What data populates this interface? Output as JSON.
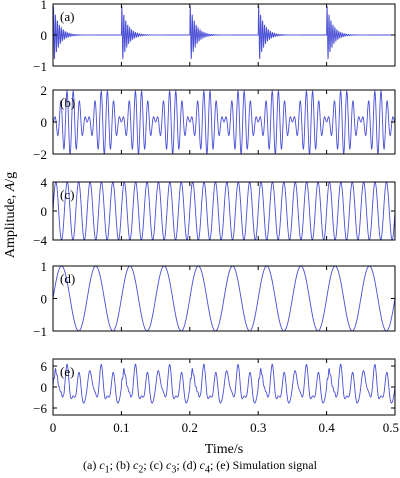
{
  "figure": {
    "ylabel_prefix": "Amplitude, ",
    "ylabel_symbol": "A",
    "ylabel_unit": "/g",
    "xlabel": "Time/s",
    "x_ticks": [
      "0",
      "0.1",
      "0.2",
      "0.3",
      "0.4",
      "0.5"
    ],
    "line_color": "#4a4fd6"
  },
  "caption": {
    "a": "(a) ",
    "c1": "c",
    "c1_sub": "1",
    "sep1": "; (b) ",
    "c2": "c",
    "c2_sub": "2",
    "sep2": "; (c) ",
    "c3": "c",
    "c3_sub": "3",
    "sep3": "; (d) ",
    "c4": "c",
    "c4_sub": "4",
    "tail": "; (e) Simulation signal"
  },
  "chart_data": [
    {
      "type": "line",
      "panel": "(a)",
      "component": "c1",
      "description_of_shape": "periodic impulse responses (decaying oscillations)",
      "xlim": [
        0,
        0.5
      ],
      "ylim": [
        -1,
        1
      ],
      "y_ticks": [
        "1",
        "0",
        "-1"
      ],
      "impulse_times": [
        0,
        0.1,
        0.2,
        0.3,
        0.4
      ],
      "amplitude": 1,
      "carrier_hz": 350,
      "decay_rate": 120
    },
    {
      "type": "line",
      "panel": "(b)",
      "component": "c2",
      "description_of_shape": "amplitude-modulated signal",
      "xlim": [
        0,
        0.5
      ],
      "ylim": [
        -2,
        2
      ],
      "y_ticks": [
        "2",
        "0",
        "-2"
      ],
      "carrier_hz": 110,
      "modulation_hz": 10,
      "amplitude": 2
    },
    {
      "type": "line",
      "panel": "(c)",
      "component": "c3",
      "description_of_shape": "sinusoid",
      "xlim": [
        0,
        0.5
      ],
      "ylim": [
        -4,
        4
      ],
      "y_ticks": [
        "4",
        "0",
        "-4"
      ],
      "frequency_hz": 60,
      "amplitude": 4
    },
    {
      "type": "line",
      "panel": "(d)",
      "component": "c4",
      "description_of_shape": "sinusoid",
      "xlim": [
        0,
        0.5
      ],
      "ylim": [
        -1,
        1
      ],
      "y_ticks": [
        "1",
        "0",
        "-1"
      ],
      "frequency_hz": 20,
      "amplitude": 1
    },
    {
      "type": "line",
      "panel": "(e)",
      "component": "simulation signal",
      "description_of_shape": "sum of c1 + c2 + c3 + c4",
      "xlim": [
        0,
        0.5
      ],
      "ylim": [
        -8,
        8
      ],
      "y_ticks": [
        "6",
        "0",
        "-6"
      ]
    }
  ]
}
